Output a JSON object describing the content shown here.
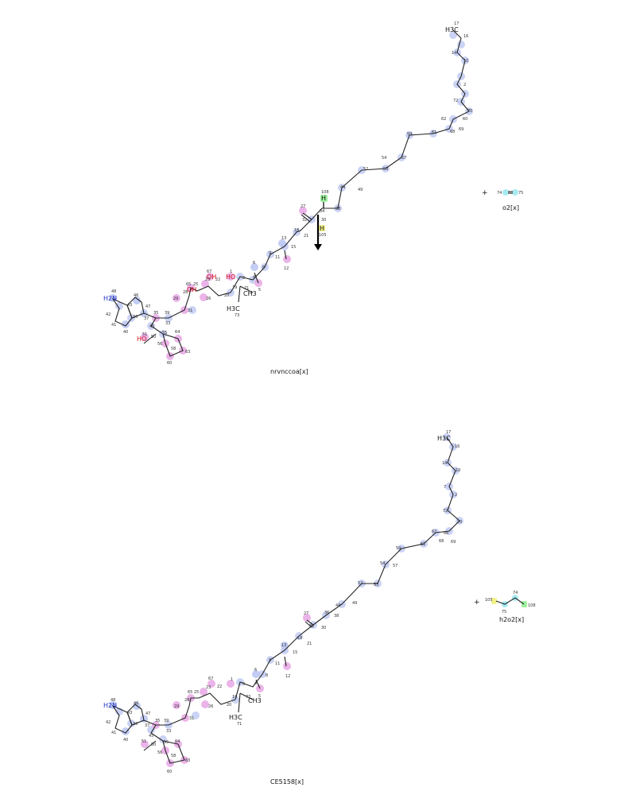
{
  "reactant": {
    "caption": "nrvnccoa[x]",
    "formula_label": "H3C",
    "amine_label": "H2N",
    "hydroxyls": [
      "HO",
      "OH",
      "OH",
      "HO"
    ],
    "methyl_label": "H3C",
    "ch3_label": "CH3",
    "highlighted_h_top": "H",
    "highlighted_h_bottom": "H"
  },
  "reactant2": {
    "caption": "o2[x]",
    "atom_labels": [
      "74",
      "75"
    ]
  },
  "product": {
    "caption": "CE5158[x]",
    "formula_label": "H3C",
    "amine_label": "H2N",
    "methyl_label": "H3C",
    "ch3_label": "CH3"
  },
  "product2": {
    "caption": "h2o2[x]",
    "atom_labels": [
      "105",
      "74",
      "75",
      "108"
    ]
  },
  "plus_sign": "+",
  "arrow_label": ""
}
